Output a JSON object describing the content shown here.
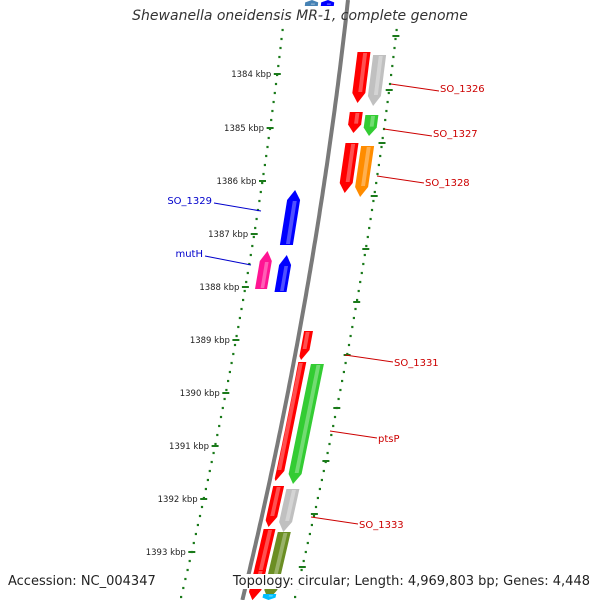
{
  "title": "Shewanella oneidensis MR-1, complete genome",
  "footer": {
    "accession": "Accession: NC_004347",
    "summary": "Topology: circular; Length: 4,969,803 bp; Genes: 4,448"
  },
  "colors": {
    "backbone": "#7a7a7a",
    "tick_green": "#1a7a1a",
    "label_red": "#cc0000",
    "label_blue": "#0000cc"
  },
  "kbp_ticks": [
    "1384 kbp",
    "1385 kbp",
    "1386 kbp",
    "1387 kbp",
    "1388 kbp",
    "1389 kbp",
    "1390 kbp",
    "1391 kbp",
    "1392 kbp",
    "1393 kbp"
  ],
  "gene_labels": [
    {
      "text": "SO_1326",
      "color": "#cc0000"
    },
    {
      "text": "SO_1327",
      "color": "#cc0000"
    },
    {
      "text": "SO_1328",
      "color": "#cc0000"
    },
    {
      "text": "SO_1329",
      "color": "#0000cc"
    },
    {
      "text": "mutH",
      "color": "#0000cc"
    },
    {
      "text": "SO_1331",
      "color": "#cc0000"
    },
    {
      "text": "ptsP",
      "color": "#cc0000"
    },
    {
      "text": "SO_1333",
      "color": "#cc0000"
    }
  ],
  "genes": [
    {
      "name": "SO_1326",
      "strand": "-",
      "color": "#ff0000"
    },
    {
      "name": "SO_1326",
      "strand": "-",
      "color": "#c0c0c0"
    },
    {
      "name": "SO_1327",
      "strand": "-",
      "color": "#ff0000"
    },
    {
      "name": "SO_1327",
      "strand": "-",
      "color": "#33cc33"
    },
    {
      "name": "SO_1328",
      "strand": "-",
      "color": "#ff0000"
    },
    {
      "name": "SO_1328",
      "strand": "-",
      "color": "#ff8c00"
    },
    {
      "name": "SO_1329",
      "strand": "+",
      "color": "#0000ff"
    },
    {
      "name": "mutH",
      "strand": "+",
      "color": "#ff1493"
    },
    {
      "name": "mutH",
      "strand": "+",
      "color": "#0000ff"
    },
    {
      "name": "SO_1331",
      "strand": "-",
      "color": "#ff0000"
    },
    {
      "name": "ptsP",
      "strand": "-",
      "color": "#ff0000"
    },
    {
      "name": "ptsP",
      "strand": "-",
      "color": "#33cc33"
    },
    {
      "name": "SO_1333",
      "strand": "-",
      "color": "#ff0000"
    },
    {
      "name": "SO_1333",
      "strand": "-",
      "color": "#c0c0c0"
    },
    {
      "name": "",
      "strand": "-",
      "color": "#ff0000"
    },
    {
      "name": "",
      "strand": "-",
      "color": "#6b8e23"
    },
    {
      "name": "",
      "strand": "-",
      "color": "#ff0000"
    },
    {
      "name": "",
      "strand": "-",
      "color": "#00bfff"
    },
    {
      "name": "",
      "strand": "+",
      "color": "#0000ff"
    },
    {
      "name": "",
      "strand": "+",
      "color": "#4682b4"
    }
  ]
}
